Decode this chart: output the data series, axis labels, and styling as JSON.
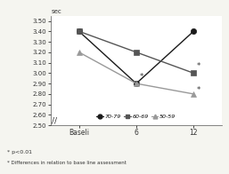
{
  "x_positions": [
    0,
    1,
    2
  ],
  "x_labels": [
    "Baseli",
    "6",
    "12"
  ],
  "series": [
    {
      "label": "70-79",
      "values": [
        3.4,
        2.9,
        3.4
      ],
      "marker": "o",
      "color": "#1a1a1a",
      "markersize": 4.5,
      "linestyle": "-",
      "markerfacecolor": "#1a1a1a"
    },
    {
      "label": "60-69",
      "values": [
        3.4,
        3.2,
        3.0
      ],
      "marker": "s",
      "color": "#555555",
      "markersize": 4.5,
      "linestyle": "-",
      "markerfacecolor": "#555555"
    },
    {
      "label": "50-59",
      "values": [
        3.2,
        2.9,
        2.8
      ],
      "marker": "^",
      "color": "#999999",
      "markersize": 4.5,
      "linestyle": "-",
      "markerfacecolor": "#999999"
    }
  ],
  "ylim": [
    2.5,
    3.55
  ],
  "yticks": [
    2.5,
    2.6,
    2.7,
    2.8,
    2.9,
    3.0,
    3.1,
    3.2,
    3.3,
    3.4,
    3.5
  ],
  "ylabel_text": "sec",
  "asterisks": [
    {
      "xi": 1,
      "series_idx": 0,
      "label": "*"
    },
    {
      "xi": 2,
      "series_idx": 1,
      "label": "*"
    },
    {
      "xi": 2,
      "series_idx": 2,
      "label": "*"
    }
  ],
  "footnote1": "* p<0.01",
  "footnote2": "* Differences in relation to base line assessment",
  "bg_color": "#f5f5f0",
  "plot_bg": "#ffffff",
  "break_symbol": "//"
}
